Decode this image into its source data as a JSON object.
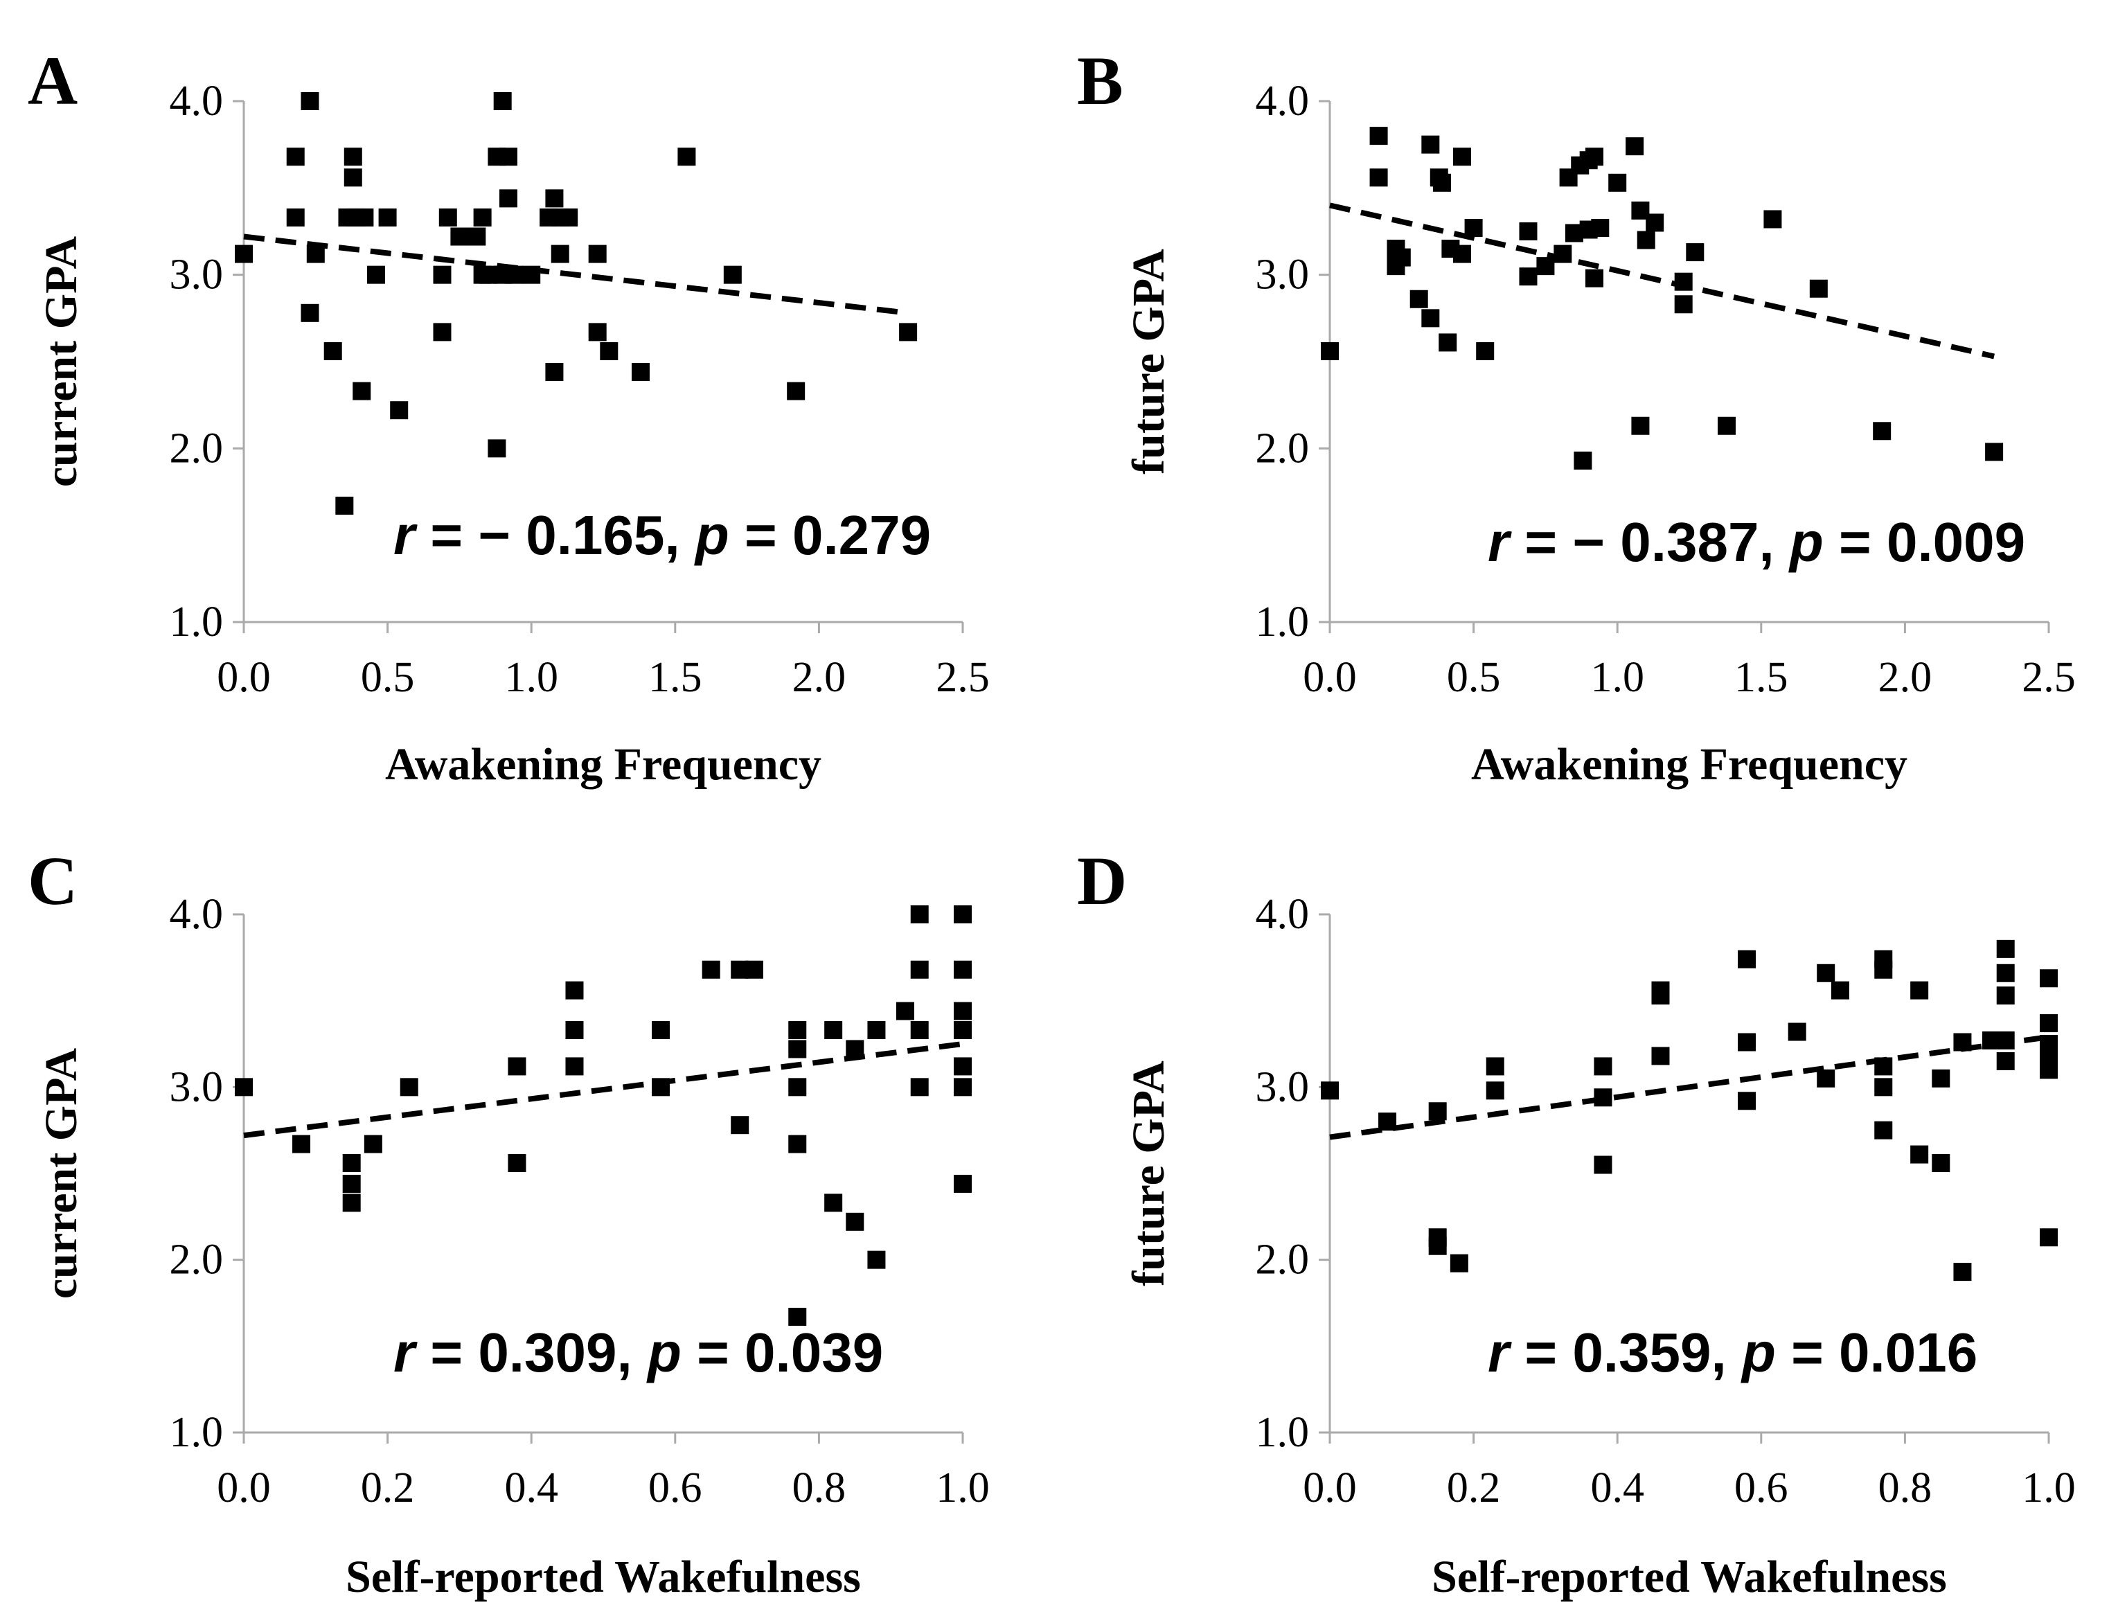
{
  "chart_data": [
    {
      "type": "scatter",
      "panel": "A",
      "xlabel": "Awakening Frequency",
      "ylabel": "current GPA",
      "xlim": [
        0.0,
        2.5
      ],
      "ylim": [
        1.0,
        4.0
      ],
      "xticks": [
        "0.0",
        "0.5",
        "1.0",
        "1.5",
        "2.0",
        "2.5"
      ],
      "yticks": [
        "1.0",
        "2.0",
        "3.0",
        "4.0"
      ],
      "trend": {
        "x": [
          0.0,
          2.31
        ],
        "y": [
          3.22,
          2.78
        ]
      },
      "stat": {
        "r_label": "r",
        "r_text": " = − 0.165, ",
        "p_label": "p",
        "p_text": " = 0.279"
      },
      "points": [
        [
          0.0,
          3.12
        ],
        [
          0.18,
          3.68
        ],
        [
          0.18,
          3.33
        ],
        [
          0.23,
          4.0
        ],
        [
          0.23,
          2.78
        ],
        [
          0.25,
          3.12
        ],
        [
          0.31,
          2.56
        ],
        [
          0.35,
          1.67
        ],
        [
          0.36,
          3.33
        ],
        [
          0.38,
          3.68
        ],
        [
          0.38,
          3.56
        ],
        [
          0.39,
          3.33
        ],
        [
          0.41,
          2.33
        ],
        [
          0.42,
          3.33
        ],
        [
          0.46,
          3.0
        ],
        [
          0.5,
          3.33
        ],
        [
          0.54,
          2.22
        ],
        [
          0.69,
          3.0
        ],
        [
          0.69,
          2.67
        ],
        [
          0.71,
          3.33
        ],
        [
          0.75,
          3.22
        ],
        [
          0.81,
          3.22
        ],
        [
          0.83,
          3.0
        ],
        [
          0.83,
          3.33
        ],
        [
          0.85,
          3.0
        ],
        [
          0.88,
          3.68
        ],
        [
          0.88,
          2.0
        ],
        [
          0.9,
          4.0
        ],
        [
          0.9,
          3.0
        ],
        [
          0.92,
          3.68
        ],
        [
          0.92,
          3.44
        ],
        [
          0.94,
          3.0
        ],
        [
          1.0,
          3.0
        ],
        [
          1.06,
          3.33
        ],
        [
          1.08,
          3.44
        ],
        [
          1.08,
          2.44
        ],
        [
          1.1,
          3.12
        ],
        [
          1.1,
          3.33
        ],
        [
          1.13,
          3.33
        ],
        [
          1.23,
          3.12
        ],
        [
          1.23,
          2.67
        ],
        [
          1.27,
          2.56
        ],
        [
          1.38,
          2.44
        ],
        [
          1.54,
          3.68
        ],
        [
          1.7,
          3.0
        ],
        [
          1.92,
          2.33
        ],
        [
          2.31,
          2.67
        ]
      ]
    },
    {
      "type": "scatter",
      "panel": "B",
      "xlabel": "Awakening Frequency",
      "ylabel": "future GPA",
      "xlim": [
        0.0,
        2.5
      ],
      "ylim": [
        1.0,
        4.0
      ],
      "xticks": [
        "0.0",
        "0.5",
        "1.0",
        "1.5",
        "2.0",
        "2.5"
      ],
      "yticks": [
        "1.0",
        "2.0",
        "3.0",
        "4.0"
      ],
      "trend": {
        "x": [
          0.0,
          2.31
        ],
        "y": [
          3.4,
          2.53
        ]
      },
      "stat": {
        "r_label": "r",
        "r_text": " = − 0.387, ",
        "p_label": "p",
        "p_text": " = 0.009"
      },
      "points": [
        [
          0.0,
          2.56
        ],
        [
          0.17,
          3.8
        ],
        [
          0.17,
          3.56
        ],
        [
          0.23,
          3.15
        ],
        [
          0.23,
          3.05
        ],
        [
          0.25,
          3.1
        ],
        [
          0.31,
          2.86
        ],
        [
          0.35,
          3.75
        ],
        [
          0.35,
          2.75
        ],
        [
          0.38,
          3.56
        ],
        [
          0.39,
          3.53
        ],
        [
          0.41,
          2.61
        ],
        [
          0.42,
          3.15
        ],
        [
          0.46,
          3.68
        ],
        [
          0.46,
          3.12
        ],
        [
          0.5,
          3.27
        ],
        [
          0.54,
          2.56
        ],
        [
          0.69,
          2.99
        ],
        [
          0.69,
          3.25
        ],
        [
          0.75,
          3.05
        ],
        [
          0.81,
          3.12
        ],
        [
          0.83,
          3.56
        ],
        [
          0.85,
          3.24
        ],
        [
          0.87,
          3.63
        ],
        [
          0.88,
          1.93
        ],
        [
          0.9,
          3.66
        ],
        [
          0.9,
          3.26
        ],
        [
          0.92,
          3.68
        ],
        [
          0.92,
          2.98
        ],
        [
          0.94,
          3.27
        ],
        [
          1.0,
          3.53
        ],
        [
          1.06,
          3.74
        ],
        [
          1.08,
          3.37
        ],
        [
          1.08,
          2.13
        ],
        [
          1.1,
          3.2
        ],
        [
          1.13,
          3.3
        ],
        [
          1.23,
          2.96
        ],
        [
          1.23,
          2.83
        ],
        [
          1.27,
          3.13
        ],
        [
          1.38,
          2.13
        ],
        [
          1.54,
          3.32
        ],
        [
          1.7,
          2.92
        ],
        [
          1.92,
          2.1
        ],
        [
          2.31,
          1.98
        ]
      ]
    },
    {
      "type": "scatter",
      "panel": "C",
      "xlabel": "Self-reported Wakefulness",
      "ylabel": "current GPA",
      "xlim": [
        0.0,
        1.0
      ],
      "ylim": [
        1.0,
        4.0
      ],
      "xticks": [
        "0.0",
        "0.2",
        "0.4",
        "0.6",
        "0.8",
        "1.0"
      ],
      "yticks": [
        "1.0",
        "2.0",
        "3.0",
        "4.0"
      ],
      "trend": {
        "x": [
          0.0,
          1.0
        ],
        "y": [
          2.72,
          3.25
        ]
      },
      "stat": {
        "r_label": "r",
        "r_text": " = 0.309, ",
        "p_label": "p",
        "p_text": " = 0.039"
      },
      "points": [
        [
          0.0,
          3.0
        ],
        [
          0.08,
          2.67
        ],
        [
          0.15,
          2.56
        ],
        [
          0.15,
          2.44
        ],
        [
          0.15,
          2.33
        ],
        [
          0.18,
          2.67
        ],
        [
          0.23,
          3.0
        ],
        [
          0.38,
          3.12
        ],
        [
          0.38,
          2.56
        ],
        [
          0.46,
          3.56
        ],
        [
          0.46,
          3.33
        ],
        [
          0.46,
          3.12
        ],
        [
          0.58,
          3.33
        ],
        [
          0.58,
          3.0
        ],
        [
          0.65,
          3.68
        ],
        [
          0.69,
          3.68
        ],
        [
          0.69,
          2.78
        ],
        [
          0.71,
          3.68
        ],
        [
          0.77,
          3.33
        ],
        [
          0.77,
          3.22
        ],
        [
          0.77,
          3.0
        ],
        [
          0.77,
          2.67
        ],
        [
          0.77,
          1.67
        ],
        [
          0.82,
          3.33
        ],
        [
          0.82,
          2.33
        ],
        [
          0.85,
          3.22
        ],
        [
          0.85,
          2.22
        ],
        [
          0.88,
          3.33
        ],
        [
          0.88,
          2.0
        ],
        [
          0.92,
          3.44
        ],
        [
          0.94,
          4.0
        ],
        [
          0.94,
          3.68
        ],
        [
          0.94,
          3.33
        ],
        [
          0.94,
          3.0
        ],
        [
          1.0,
          4.0
        ],
        [
          1.0,
          3.68
        ],
        [
          1.0,
          3.44
        ],
        [
          1.0,
          3.33
        ],
        [
          1.0,
          3.12
        ],
        [
          1.0,
          3.0
        ],
        [
          1.0,
          2.44
        ]
      ]
    },
    {
      "type": "scatter",
      "panel": "D",
      "xlabel": "Self-reported Wakefulness",
      "ylabel": "future GPA",
      "xlim": [
        0.0,
        1.0
      ],
      "ylim": [
        1.0,
        4.0
      ],
      "xticks": [
        "0.0",
        "0.2",
        "0.4",
        "0.6",
        "0.8",
        "1.0"
      ],
      "yticks": [
        "1.0",
        "2.0",
        "3.0",
        "4.0"
      ],
      "trend": {
        "x": [
          0.0,
          1.0
        ],
        "y": [
          2.71,
          3.29
        ]
      },
      "stat": {
        "r_label": "r",
        "r_text": " = 0.359, ",
        "p_label": "p",
        "p_text": " = 0.016"
      },
      "points": [
        [
          0.0,
          2.98
        ],
        [
          0.08,
          2.8
        ],
        [
          0.15,
          2.86
        ],
        [
          0.15,
          2.13
        ],
        [
          0.15,
          2.08
        ],
        [
          0.18,
          1.98
        ],
        [
          0.23,
          3.12
        ],
        [
          0.23,
          2.98
        ],
        [
          0.38,
          3.12
        ],
        [
          0.38,
          2.94
        ],
        [
          0.38,
          2.55
        ],
        [
          0.46,
          3.56
        ],
        [
          0.46,
          3.53
        ],
        [
          0.46,
          3.18
        ],
        [
          0.58,
          3.74
        ],
        [
          0.58,
          3.26
        ],
        [
          0.58,
          2.92
        ],
        [
          0.65,
          3.32
        ],
        [
          0.69,
          3.66
        ],
        [
          0.69,
          3.05
        ],
        [
          0.71,
          3.56
        ],
        [
          0.77,
          3.74
        ],
        [
          0.77,
          3.68
        ],
        [
          0.77,
          3.12
        ],
        [
          0.77,
          3.0
        ],
        [
          0.77,
          2.75
        ],
        [
          0.82,
          3.56
        ],
        [
          0.82,
          2.61
        ],
        [
          0.85,
          3.05
        ],
        [
          0.85,
          2.56
        ],
        [
          0.88,
          1.93
        ],
        [
          0.88,
          3.26
        ],
        [
          0.92,
          3.27
        ],
        [
          0.94,
          3.8
        ],
        [
          0.94,
          3.66
        ],
        [
          0.94,
          3.53
        ],
        [
          0.94,
          3.27
        ],
        [
          0.94,
          3.15
        ],
        [
          1.0,
          3.63
        ],
        [
          1.0,
          3.37
        ],
        [
          1.0,
          3.25
        ],
        [
          1.0,
          3.2
        ],
        [
          1.0,
          3.13
        ],
        [
          1.0,
          3.1
        ],
        [
          1.0,
          2.13
        ]
      ]
    }
  ]
}
